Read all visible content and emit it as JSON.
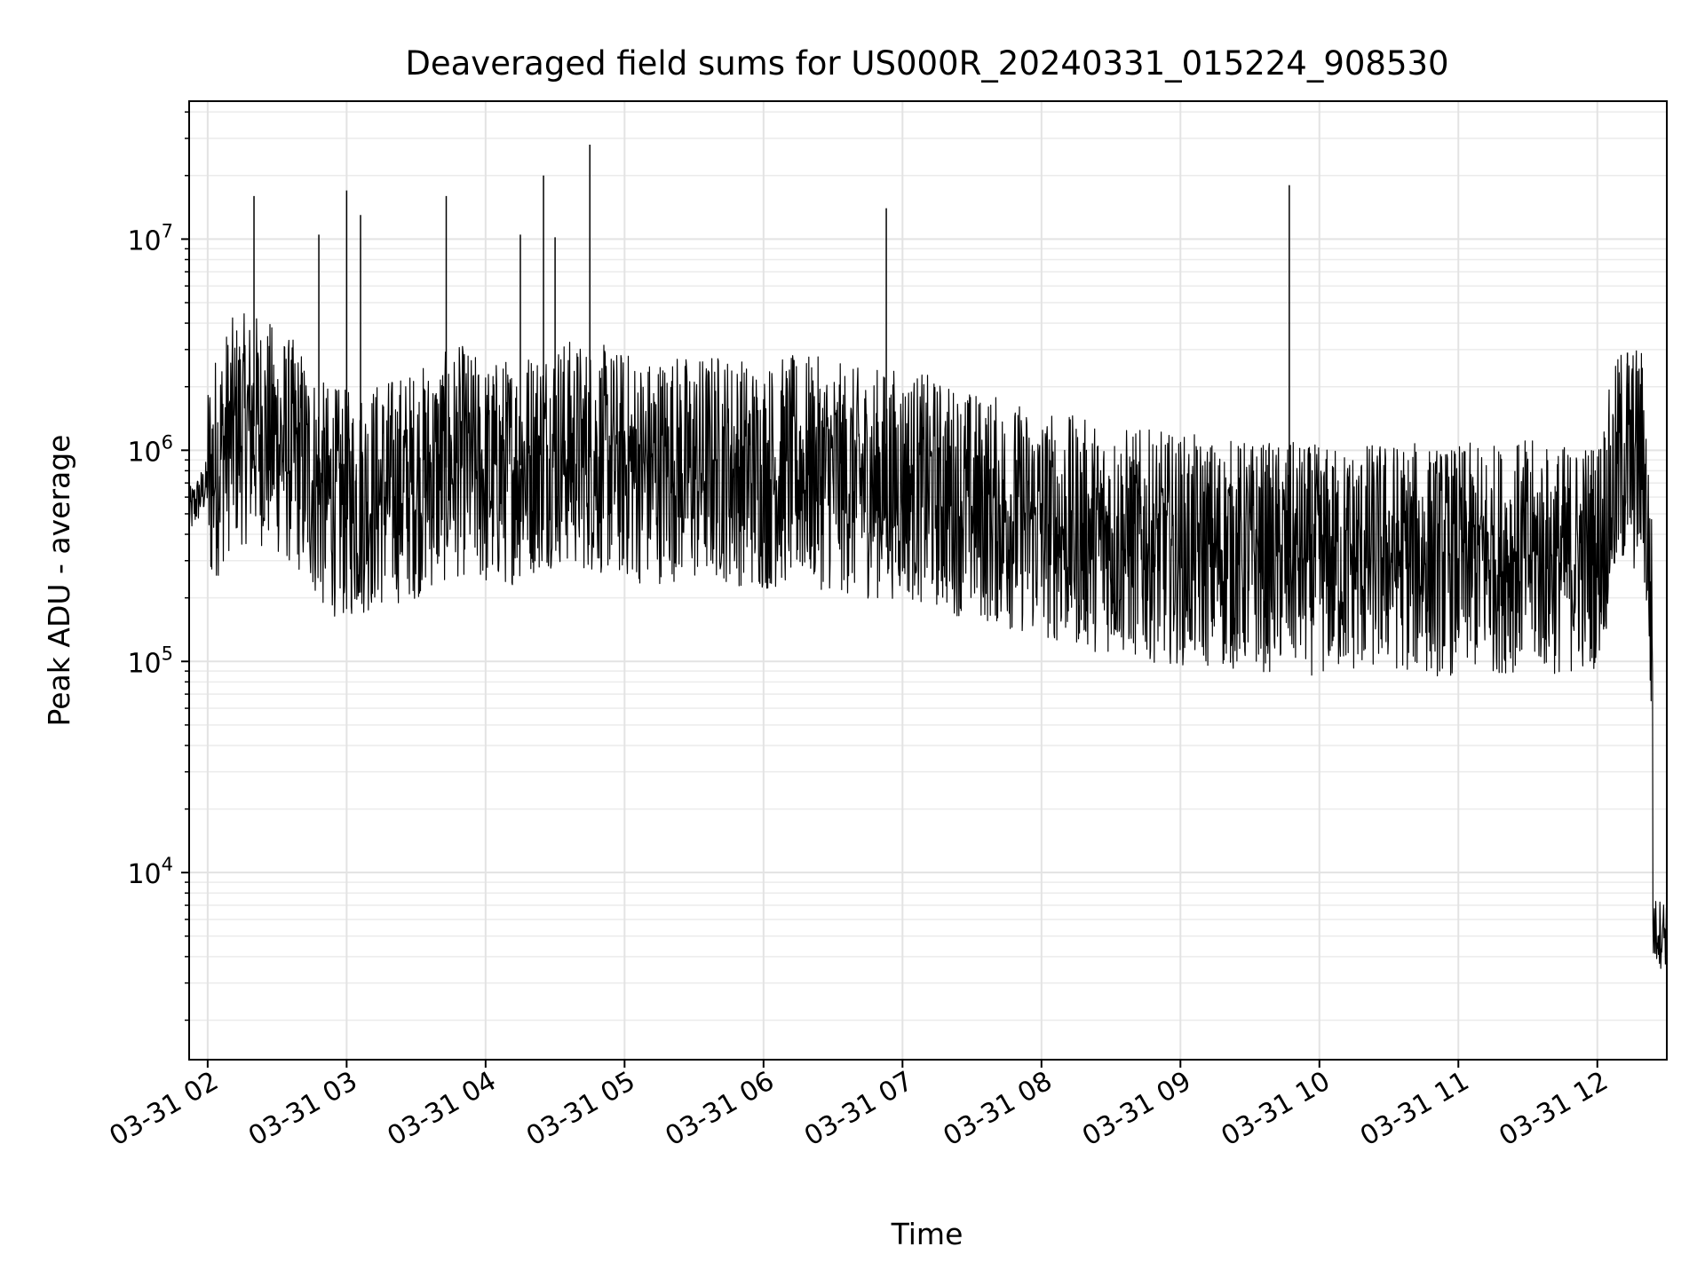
{
  "chart_data": {
    "type": "line",
    "title": "Deaveraged field sums for US000R_20240331_015224_908530",
    "xlabel": "Time",
    "ylabel": "Peak ADU - average",
    "y_scale": "log",
    "ylim": [
      1300,
      45000000
    ],
    "xlim": [
      "2024-03-31 01:52",
      "2024-03-31 12:30"
    ],
    "x_ticks": [
      "03-31 02",
      "03-31 03",
      "03-31 04",
      "03-31 05",
      "03-31 06",
      "03-31 07",
      "03-31 08",
      "03-31 09",
      "03-31 10",
      "03-31 11",
      "03-31 12"
    ],
    "y_ticks": [
      {
        "base": "10",
        "exp": "4",
        "value": 10000
      },
      {
        "base": "10",
        "exp": "5",
        "value": 100000
      },
      {
        "base": "10",
        "exp": "6",
        "value": 1000000
      },
      {
        "base": "10",
        "exp": "7",
        "value": 10000000
      }
    ],
    "grid": true,
    "line_color": "#000000",
    "series": [
      {
        "x": [
          "2024-03-31 01:52",
          "2024-03-31 02:00",
          "2024-03-31 02:10",
          "2024-03-31 02:20",
          "2024-03-31 02:30",
          "2024-03-31 02:40",
          "2024-03-31 02:50",
          "2024-03-31 03:00",
          "2024-03-31 03:10",
          "2024-03-31 03:20",
          "2024-03-31 03:30",
          "2024-03-31 03:40",
          "2024-03-31 03:50",
          "2024-03-31 04:00",
          "2024-03-31 04:10",
          "2024-03-31 04:20",
          "2024-03-31 04:30",
          "2024-03-31 04:40",
          "2024-03-31 04:50",
          "2024-03-31 05:00",
          "2024-03-31 05:10",
          "2024-03-31 05:20",
          "2024-03-31 05:30",
          "2024-03-31 05:40",
          "2024-03-31 05:50",
          "2024-03-31 06:00",
          "2024-03-31 06:10",
          "2024-03-31 06:20",
          "2024-03-31 06:30",
          "2024-03-31 06:40",
          "2024-03-31 06:50",
          "2024-03-31 07:00",
          "2024-03-31 07:10",
          "2024-03-31 07:20",
          "2024-03-31 07:30",
          "2024-03-31 07:40",
          "2024-03-31 07:50",
          "2024-03-31 08:00",
          "2024-03-31 08:10",
          "2024-03-31 08:20",
          "2024-03-31 08:30",
          "2024-03-31 08:40",
          "2024-03-31 08:50",
          "2024-03-31 09:00",
          "2024-03-31 09:10",
          "2024-03-31 09:20",
          "2024-03-31 09:30",
          "2024-03-31 09:40",
          "2024-03-31 09:50",
          "2024-03-31 10:00",
          "2024-03-31 10:10",
          "2024-03-31 10:20",
          "2024-03-31 10:30",
          "2024-03-31 10:40",
          "2024-03-31 10:50",
          "2024-03-31 11:00",
          "2024-03-31 11:10",
          "2024-03-31 11:20",
          "2024-03-31 11:30",
          "2024-03-31 11:40",
          "2024-03-31 11:50",
          "2024-03-31 12:00",
          "2024-03-31 12:10",
          "2024-03-31 12:20",
          "2024-03-31 12:30"
        ],
        "values": [
          500000,
          700000,
          1200000,
          1300000,
          1100000,
          900000,
          600000,
          550000,
          600000,
          650000,
          700000,
          800000,
          900000,
          750000,
          800000,
          900000,
          1000000,
          950000,
          900000,
          850000,
          800000,
          850000,
          800000,
          850000,
          800000,
          750000,
          800000,
          800000,
          750000,
          700000,
          700000,
          700000,
          650000,
          600000,
          550000,
          520000,
          480000,
          450000,
          420000,
          400000,
          380000,
          360000,
          350000,
          340000,
          330000,
          320000,
          320000,
          310000,
          310000,
          300000,
          300000,
          310000,
          320000,
          310000,
          300000,
          300000,
          310000,
          310000,
          320000,
          300000,
          310000,
          330000,
          900000,
          900000,
          5000
        ]
      }
    ],
    "spikes": [
      {
        "x": "2024-03-31 02:20",
        "value": 16000000
      },
      {
        "x": "2024-03-31 02:48",
        "value": 10500000
      },
      {
        "x": "2024-03-31 03:00",
        "value": 17000000
      },
      {
        "x": "2024-03-31 03:06",
        "value": 13000000
      },
      {
        "x": "2024-03-31 03:43",
        "value": 16000000
      },
      {
        "x": "2024-03-31 04:15",
        "value": 10500000
      },
      {
        "x": "2024-03-31 04:25",
        "value": 20000000
      },
      {
        "x": "2024-03-31 04:30",
        "value": 10200000
      },
      {
        "x": "2024-03-31 04:45",
        "value": 28000000
      },
      {
        "x": "2024-03-31 06:53",
        "value": 14000000
      },
      {
        "x": "2024-03-31 09:47",
        "value": 18000000
      },
      {
        "x": "2024-03-31 12:13",
        "value": 2900000
      }
    ]
  }
}
